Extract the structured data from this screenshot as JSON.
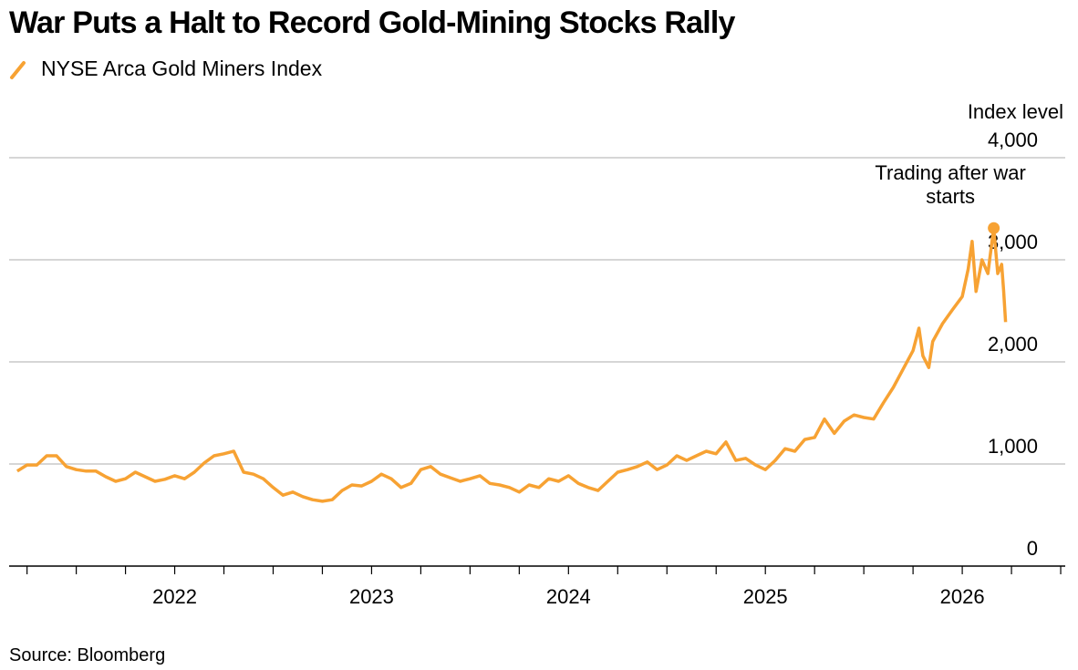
{
  "chart_data": {
    "type": "line",
    "title": "War Puts a Halt to Record Gold-Mining Stocks Rally",
    "source": "Source: Bloomberg",
    "y_label": "Index level",
    "grid": true,
    "series": [
      {
        "name": "NYSE Arca Gold Miners Index",
        "color": "#f7a233",
        "values": [
          930,
          990,
          990,
          1080,
          1080,
          975,
          945,
          930,
          930,
          875,
          830,
          855,
          920,
          875,
          830,
          850,
          885,
          855,
          920,
          1010,
          1080,
          1100,
          1125,
          920,
          900,
          855,
          770,
          695,
          725,
          680,
          650,
          635,
          650,
          740,
          795,
          785,
          830,
          900,
          855,
          770,
          810,
          945,
          975,
          900,
          865,
          830,
          855,
          885,
          810,
          795,
          770,
          725,
          795,
          770,
          855,
          830,
          885,
          810,
          770,
          740,
          830,
          920,
          945,
          975,
          1020,
          945,
          990,
          1080,
          1035,
          1080,
          1125,
          1100,
          1215,
          1035,
          1055,
          990,
          945,
          1035,
          1150,
          1125,
          1240,
          1260,
          1440,
          1300,
          1420,
          1480,
          1455,
          1440,
          1600,
          1750,
          1930,
          2110,
          2330,
          2060,
          1945,
          2200,
          2375,
          2510,
          2640,
          2910,
          3180,
          2690,
          3000,
          2865,
          3310,
          2865,
          2955,
          2705,
          2390
        ]
      }
    ],
    "x": [
      2021.2,
      2021.25,
      2021.3,
      2021.35,
      2021.4,
      2021.45,
      2021.5,
      2021.55,
      2021.6,
      2021.65,
      2021.7,
      2021.75,
      2021.8,
      2021.85,
      2021.9,
      2021.95,
      2022.0,
      2022.05,
      2022.1,
      2022.15,
      2022.2,
      2022.25,
      2022.3,
      2022.35,
      2022.4,
      2022.45,
      2022.5,
      2022.55,
      2022.6,
      2022.65,
      2022.7,
      2022.75,
      2022.8,
      2022.85,
      2022.9,
      2022.95,
      2023.0,
      2023.05,
      2023.1,
      2023.15,
      2023.2,
      2023.25,
      2023.3,
      2023.35,
      2023.4,
      2023.45,
      2023.5,
      2023.55,
      2023.6,
      2023.65,
      2023.7,
      2023.75,
      2023.8,
      2023.85,
      2023.9,
      2023.95,
      2024.0,
      2024.05,
      2024.1,
      2024.15,
      2024.2,
      2024.25,
      2024.3,
      2024.35,
      2024.4,
      2024.45,
      2024.5,
      2024.55,
      2024.6,
      2024.65,
      2024.7,
      2024.75,
      2024.8,
      2024.85,
      2024.9,
      2024.95,
      2025.0,
      2025.05,
      2025.1,
      2025.15,
      2025.2,
      2025.25,
      2025.3,
      2025.35,
      2025.4,
      2025.45,
      2025.5,
      2025.55,
      2025.6,
      2025.65,
      2025.7,
      2025.75,
      2025.78,
      2025.8,
      2025.83,
      2025.85,
      2025.9,
      2025.95,
      2026.0,
      2026.03,
      2026.05,
      2026.07,
      2026.1,
      2026.13,
      2026.16,
      2026.18,
      2026.2,
      2026.21,
      2026.22
    ],
    "xlim": [
      2021.159,
      2026.523
    ],
    "xticks": [
      2022,
      2023,
      2024,
      2025,
      2026
    ],
    "xticks_minor": [
      2021.25,
      2021.5,
      2021.75,
      2022.25,
      2022.5,
      2022.75,
      2023.25,
      2023.5,
      2023.75,
      2024.25,
      2024.5,
      2024.75,
      2025.25,
      2025.5,
      2025.75,
      2026.25,
      2026.5
    ],
    "ylim": [
      0,
      4000
    ],
    "yticks": [
      0,
      {
        "value": 1000,
        "label": "1,000"
      },
      {
        "value": 2000,
        "label": "2,000"
      },
      {
        "value": 3000,
        "label": "3,000"
      },
      {
        "value": 4000,
        "label": "4,000"
      }
    ],
    "annotation": {
      "text": "Trading after war starts",
      "x": 2026.16,
      "y": 3310
    }
  }
}
